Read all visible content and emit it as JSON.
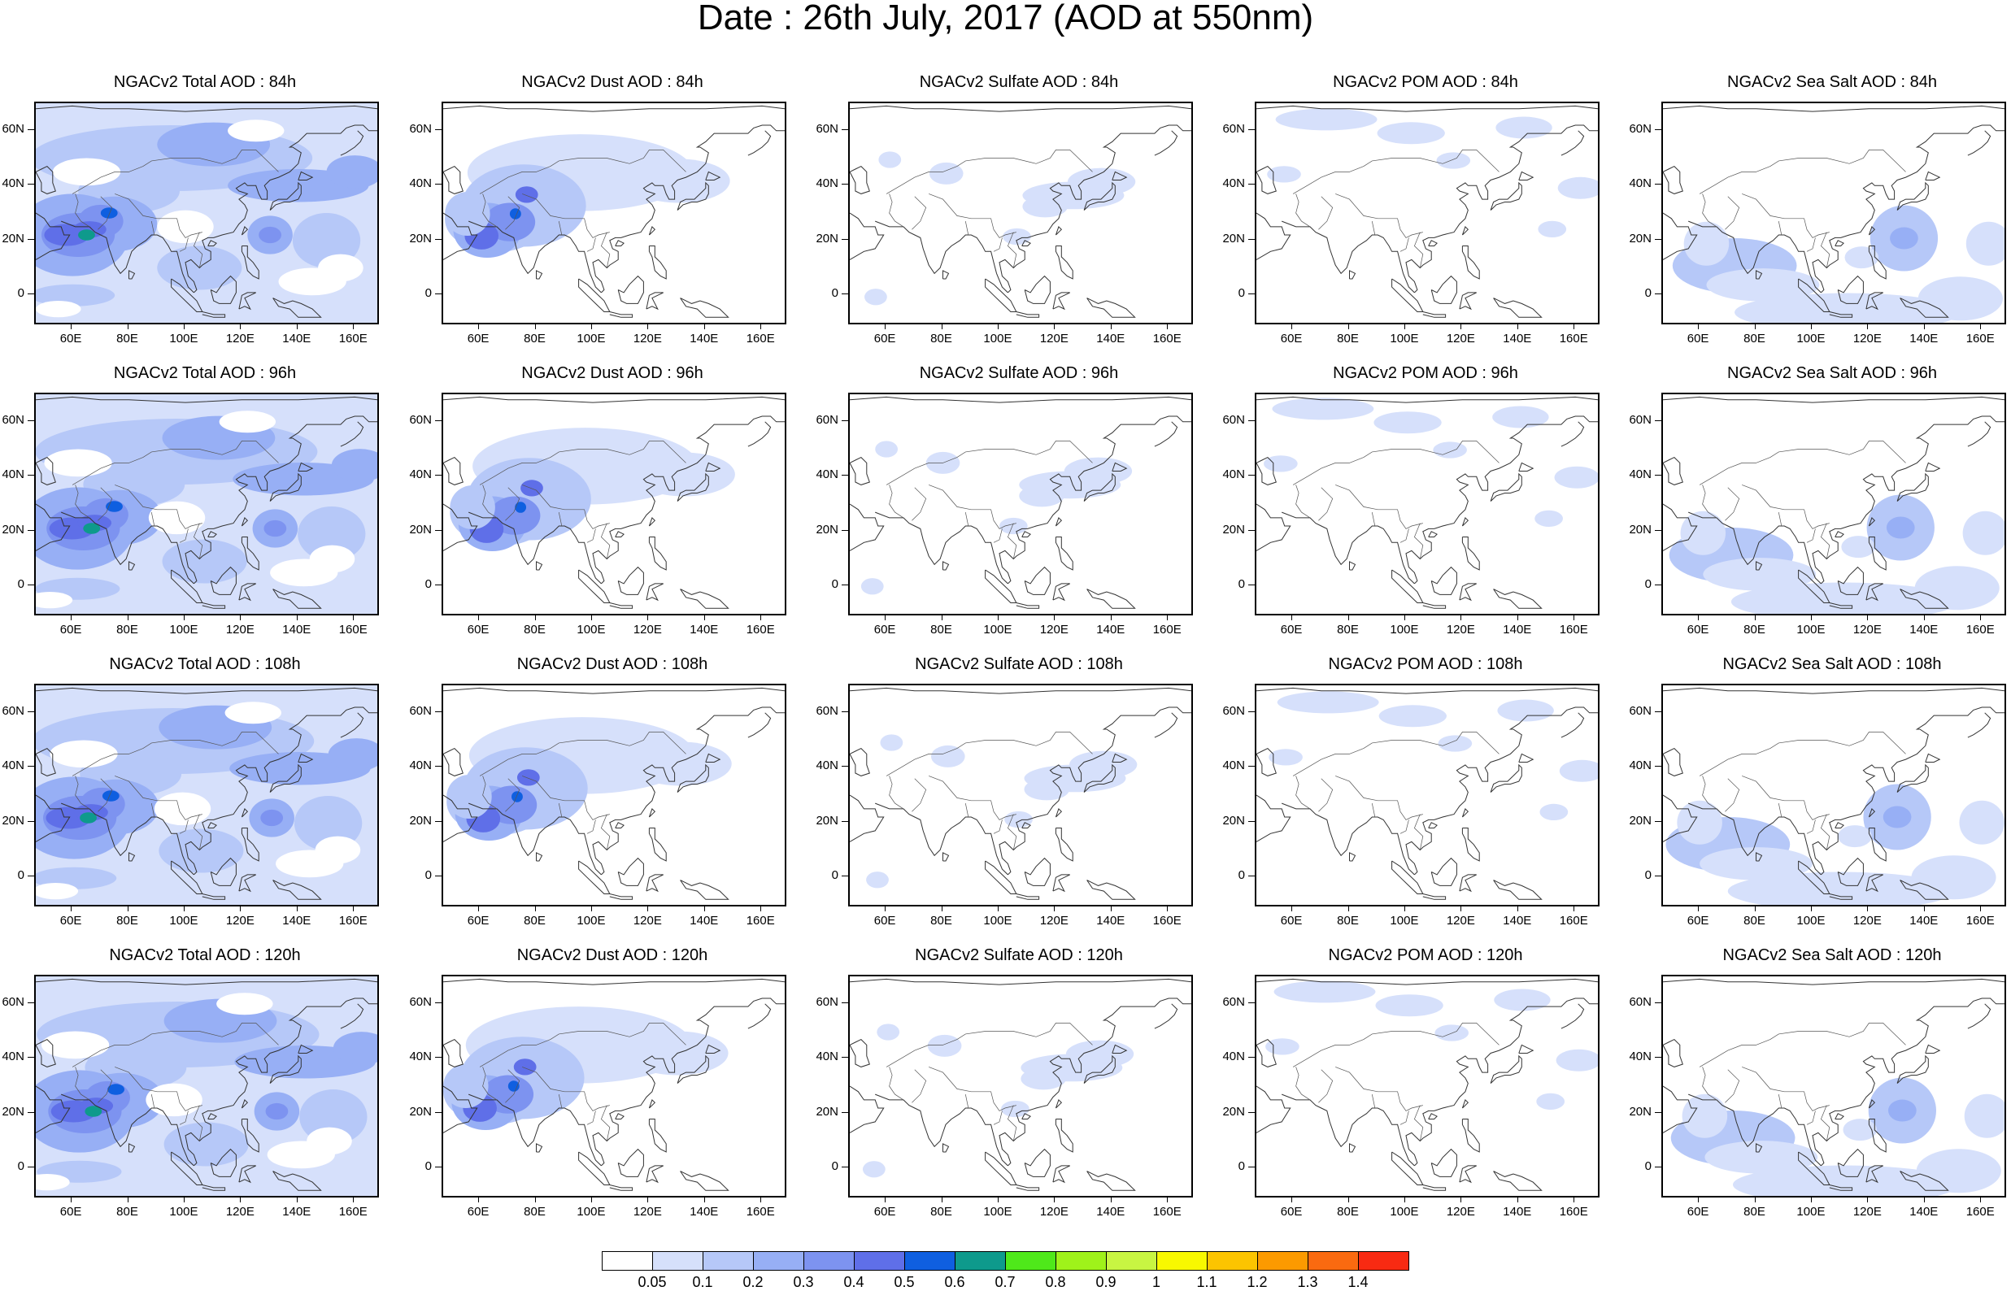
{
  "title": "Date : 26th July, 2017 (AOD at 550nm)",
  "lat_ticks": [
    "60N",
    "40N",
    "20N",
    "0"
  ],
  "lon_ticks": [
    "60E",
    "80E",
    "100E",
    "120E",
    "140E",
    "160E"
  ],
  "panels": [
    [
      {
        "title": "NGACv2 Total AOD : 84h",
        "species": "total"
      },
      {
        "title": "NGACv2 Dust AOD : 84h",
        "species": "dust"
      },
      {
        "title": "NGACv2 Sulfate AOD : 84h",
        "species": "sulfate"
      },
      {
        "title": "NGACv2 POM AOD : 84h",
        "species": "pom"
      },
      {
        "title": "NGACv2 Sea Salt AOD : 84h",
        "species": "seasalt"
      }
    ],
    [
      {
        "title": "NGACv2 Total AOD : 96h",
        "species": "total"
      },
      {
        "title": "NGACv2 Dust AOD : 96h",
        "species": "dust"
      },
      {
        "title": "NGACv2 Sulfate AOD : 96h",
        "species": "sulfate"
      },
      {
        "title": "NGACv2 POM AOD : 96h",
        "species": "pom"
      },
      {
        "title": "NGACv2 Sea Salt AOD : 96h",
        "species": "seasalt"
      }
    ],
    [
      {
        "title": "NGACv2 Total AOD : 108h",
        "species": "total"
      },
      {
        "title": "NGACv2 Dust AOD : 108h",
        "species": "dust"
      },
      {
        "title": "NGACv2 Sulfate AOD : 108h",
        "species": "sulfate"
      },
      {
        "title": "NGACv2 POM AOD : 108h",
        "species": "pom"
      },
      {
        "title": "NGACv2 Sea Salt AOD : 108h",
        "species": "seasalt"
      }
    ],
    [
      {
        "title": "NGACv2 Total AOD : 120h",
        "species": "total"
      },
      {
        "title": "NGACv2 Dust AOD : 120h",
        "species": "dust"
      },
      {
        "title": "NGACv2 Sulfate AOD : 120h",
        "species": "sulfate"
      },
      {
        "title": "NGACv2 POM AOD : 120h",
        "species": "pom"
      },
      {
        "title": "NGACv2 Sea Salt  AOD : 120h",
        "species": "seasalt"
      }
    ]
  ],
  "colorbar": {
    "colors": [
      "#ffffff",
      "#d6e0fb",
      "#b6c8f8",
      "#97aff5",
      "#7d93f0",
      "#5f6fe8",
      "#0f5fe0",
      "#0e9a8c",
      "#4fe81a",
      "#9ff21a",
      "#c8f542",
      "#f8f800",
      "#fcc400",
      "#fc9a00",
      "#fa6a10",
      "#f82a12"
    ],
    "labels": [
      "0.05",
      "0.1",
      "0.2",
      "0.3",
      "0.4",
      "0.5",
      "0.6",
      "0.7",
      "0.8",
      "0.9",
      "1",
      "1.1",
      "1.2",
      "1.3",
      "1.4"
    ]
  }
}
